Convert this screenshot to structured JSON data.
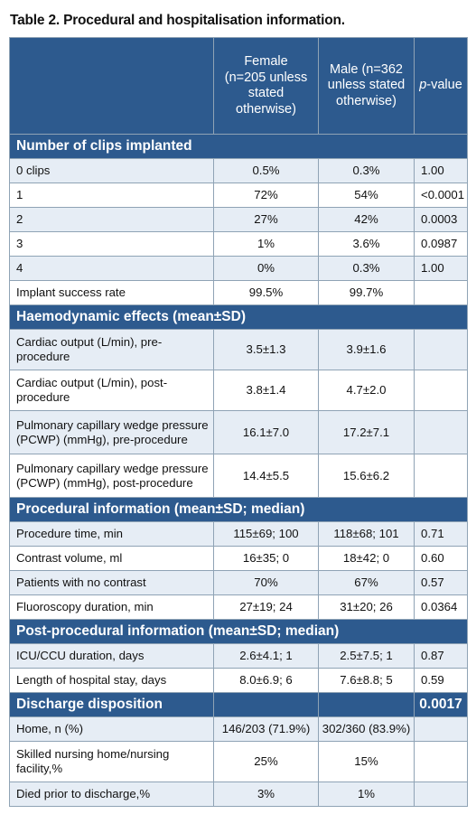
{
  "title": "Table 2. Procedural and hospitalisation information.",
  "header": {
    "col0": "",
    "female": "Female (n=205 unless stated otherwise)",
    "male": "Male (n=362 unless stated otherwise)",
    "pvalue_italic": "p",
    "pvalue_rest": "-value"
  },
  "sections": [
    {
      "title": "Number of clips implanted",
      "rows": [
        {
          "label": "0 clips",
          "female": "0.5%",
          "male": "0.3%",
          "p": "1.00"
        },
        {
          "label": "1",
          "female": "72%",
          "male": "54%",
          "p": "<0.0001"
        },
        {
          "label": "2",
          "female": "27%",
          "male": "42%",
          "p": "0.0003"
        },
        {
          "label": "3",
          "female": "1%",
          "male": "3.6%",
          "p": "0.0987"
        },
        {
          "label": "4",
          "female": "0%",
          "male": "0.3%",
          "p": "1.00"
        },
        {
          "label": "Implant success rate",
          "female": "99.5%",
          "male": "99.7%",
          "p": ""
        }
      ]
    },
    {
      "title": "Haemodynamic effects (mean±SD)",
      "rows": [
        {
          "label": "Cardiac output (L/min), pre-procedure",
          "female": "3.5±1.3",
          "male": "3.9±1.6",
          "p": ""
        },
        {
          "label": "Cardiac output (L/min), post-procedure",
          "female": "3.8±1.4",
          "male": "4.7±2.0",
          "p": ""
        },
        {
          "label": "Pulmonary capillary wedge pressure (PCWP) (mmHg), pre-procedure",
          "female": "16.1±7.0",
          "male": "17.2±7.1",
          "p": ""
        },
        {
          "label": "Pulmonary capillary wedge pressure (PCWP) (mmHg), post-procedure",
          "female": "14.4±5.5",
          "male": "15.6±6.2",
          "p": ""
        }
      ]
    },
    {
      "title": "Procedural information (mean±SD; median)",
      "rows": [
        {
          "label": "Procedure time, min",
          "female": "115±69; 100",
          "male": "118±68; 101",
          "p": "0.71"
        },
        {
          "label": "Contrast volume, ml",
          "female": "16±35; 0",
          "male": "18±42; 0",
          "p": "0.60"
        },
        {
          "label": "Patients with no contrast",
          "female": "70%",
          "male": "67%",
          "p": "0.57"
        },
        {
          "label": "Fluoroscopy duration, min",
          "female": "27±19; 24",
          "male": "31±20; 26",
          "p": "0.0364"
        }
      ]
    },
    {
      "title": "Post-procedural information (mean±SD; median)",
      "rows": [
        {
          "label": "ICU/CCU duration, days",
          "female": "2.6±4.1; 1",
          "male": "2.5±7.5; 1",
          "p": "0.87"
        },
        {
          "label": "Length of hospital stay, days",
          "female": "8.0±6.9; 6",
          "male": "7.6±8.8; 5",
          "p": "0.59"
        }
      ]
    },
    {
      "title": "Discharge disposition",
      "p": "0.0017",
      "rows": [
        {
          "label": "Home, n (%)",
          "female": "146/203 (71.9%)",
          "male": "302/360 (83.9%)",
          "p": ""
        },
        {
          "label": "Skilled nursing home/nursing facility,%",
          "female": "25%",
          "male": "15%",
          "p": ""
        },
        {
          "label": "Died prior to discharge,%",
          "female": "3%",
          "male": "1%",
          "p": ""
        }
      ]
    }
  ]
}
